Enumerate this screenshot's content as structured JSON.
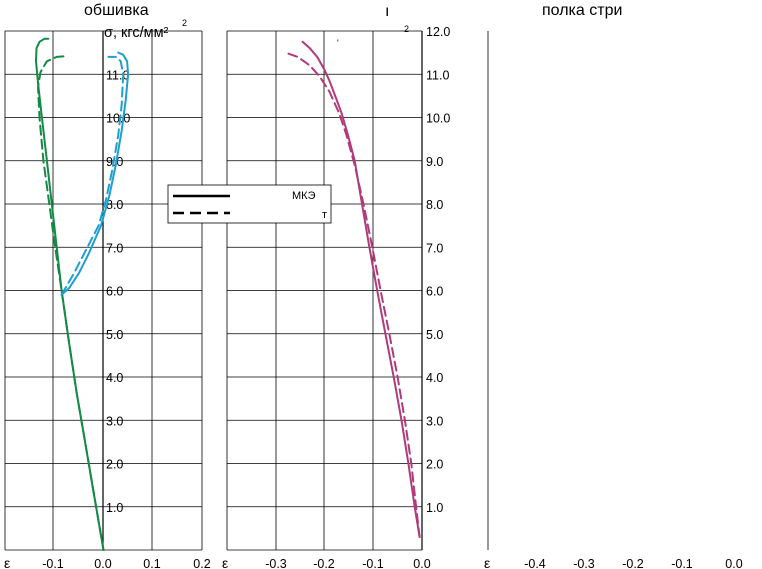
{
  "chart_data": [
    {
      "type": "line",
      "title": "обшивка",
      "xlabel": "ε",
      "ylabel": "σ, кгс/мм²",
      "xlim": [
        -0.2,
        0.2
      ],
      "ylim": [
        0,
        12
      ],
      "x_ticks": [
        "-0.1",
        "0.0",
        "0.1",
        "0.2"
      ],
      "y_ticks": [
        "1.0",
        "2.0",
        "3.0",
        "4.0",
        "5.0",
        "6.0",
        "7.0",
        "8.0",
        "9.0",
        "10.0",
        "11.0"
      ],
      "grid": true,
      "series": [
        {
          "color": "#138a45",
          "style": "solid",
          "x": [
            0.0,
            -0.018,
            -0.036,
            -0.054,
            -0.07,
            -0.085,
            -0.095,
            -0.105,
            -0.115,
            -0.125,
            -0.133,
            -0.137,
            -0.136,
            -0.13,
            -0.12,
            -0.112
          ],
          "y": [
            0.0,
            1.2,
            2.4,
            3.6,
            4.8,
            6.0,
            7.0,
            8.0,
            9.0,
            10.0,
            10.8,
            11.3,
            11.6,
            11.75,
            11.82,
            11.82
          ]
        },
        {
          "color": "#138a45",
          "style": "dashed",
          "x": [
            0.0,
            -0.018,
            -0.036,
            -0.054,
            -0.07,
            -0.085,
            -0.098,
            -0.11,
            -0.122,
            -0.13,
            -0.133,
            -0.128,
            -0.115,
            -0.095,
            -0.075
          ],
          "y": [
            0.0,
            1.2,
            2.4,
            3.6,
            4.8,
            6.0,
            7.0,
            8.0,
            9.0,
            10.0,
            10.7,
            11.05,
            11.3,
            11.4,
            11.42
          ]
        },
        {
          "color": "#1f9fd0",
          "style": "solid",
          "x": [
            -0.085,
            -0.07,
            -0.05,
            -0.03,
            -0.005,
            0.012,
            0.025,
            0.037,
            0.045,
            0.05,
            0.048,
            0.04,
            0.03
          ],
          "y": [
            5.9,
            6.05,
            6.4,
            6.85,
            7.5,
            8.2,
            8.9,
            9.7,
            10.4,
            11.0,
            11.3,
            11.45,
            11.5
          ]
        },
        {
          "color": "#1f9fd0",
          "style": "dashed",
          "x": [
            -0.085,
            -0.06,
            -0.035,
            -0.01,
            0.005,
            0.018,
            0.03,
            0.037,
            0.04,
            0.035,
            0.025,
            0.01
          ],
          "y": [
            5.9,
            6.4,
            6.95,
            7.5,
            8.1,
            8.8,
            9.6,
            10.3,
            11.0,
            11.3,
            11.4,
            11.4
          ]
        }
      ]
    },
    {
      "type": "line",
      "title": "",
      "xlabel": "ε",
      "ylabel": "",
      "xlim": [
        -0.4,
        0.0
      ],
      "ylim": [
        0,
        12
      ],
      "x_ticks": [
        "-0.3",
        "-0.2",
        "-0.1",
        "0.0"
      ],
      "y_ticks": [
        "1.0",
        "2.0",
        "3.0",
        "4.0",
        "5.0",
        "6.0",
        "7.0",
        "8.0",
        "9.0",
        "10.0",
        "11.0",
        "12.0"
      ],
      "grid": true,
      "series": [
        {
          "color": "#b03a7a",
          "style": "solid",
          "x": [
            -0.005,
            -0.015,
            -0.028,
            -0.042,
            -0.058,
            -0.075,
            -0.092,
            -0.108,
            -0.123,
            -0.138,
            -0.152,
            -0.165,
            -0.178,
            -0.19,
            -0.2,
            -0.215,
            -0.23,
            -0.245
          ],
          "y": [
            0.3,
            1.0,
            2.0,
            3.0,
            4.0,
            5.0,
            6.0,
            7.0,
            8.0,
            9.0,
            9.6,
            10.1,
            10.5,
            10.85,
            11.1,
            11.4,
            11.6,
            11.75
          ]
        },
        {
          "color": "#b03a7a",
          "style": "dashed",
          "x": [
            -0.005,
            -0.012,
            -0.022,
            -0.035,
            -0.05,
            -0.067,
            -0.085,
            -0.102,
            -0.12,
            -0.138,
            -0.155,
            -0.17,
            -0.19,
            -0.21,
            -0.23,
            -0.255,
            -0.28
          ],
          "y": [
            0.3,
            1.0,
            2.0,
            3.0,
            4.0,
            5.0,
            6.0,
            7.0,
            8.0,
            8.9,
            9.6,
            10.1,
            10.6,
            10.95,
            11.2,
            11.4,
            11.5
          ]
        }
      ]
    },
    {
      "type": "line",
      "title": "полка стри",
      "xlabel": "ε",
      "ylabel": "",
      "xlim": [
        -0.5,
        0.0
      ],
      "ylim": [
        0,
        12
      ],
      "x_ticks": [
        "-0.4",
        "-0.3",
        "-0.2",
        "-0.1",
        "0.0"
      ],
      "y_ticks": [],
      "grid": false,
      "series": []
    }
  ],
  "legend": {
    "solid_label": "МКЭ",
    "dashed_label": "т"
  },
  "fragments": {
    "mid_top_char": "ı",
    "mid_top_sup": "2",
    "tiny_tick": "'",
    "y_unit_sup": "2"
  }
}
